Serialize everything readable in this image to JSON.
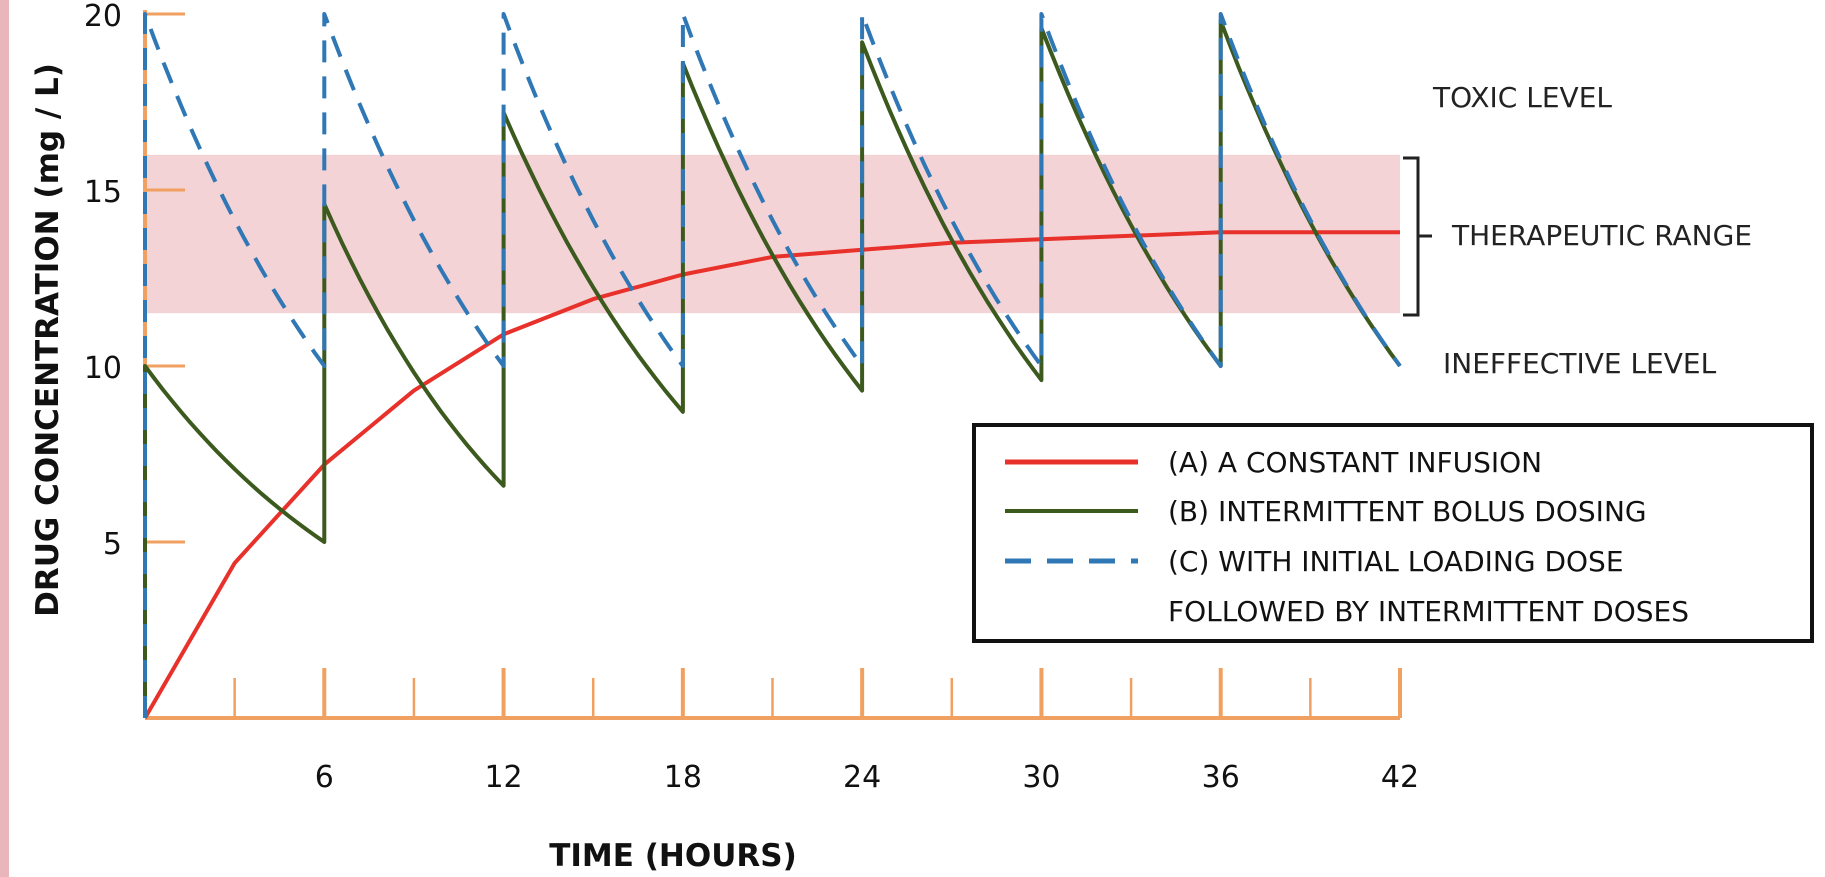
{
  "chart_data": {
    "type": "line",
    "xlabel": "TIME (HOURS)",
    "ylabel": "DRUG CONCENTRATION (mg / L)",
    "xlim": [
      0,
      42
    ],
    "ylim": [
      0,
      20
    ],
    "x_ticks": [
      6,
      12,
      18,
      24,
      30,
      36,
      42
    ],
    "y_ticks": [
      5,
      10,
      15,
      20
    ],
    "therapeutic_range": [
      11.5,
      16
    ],
    "annotations": {
      "toxic": "TOXIC LEVEL",
      "therapeutic": "THERAPEUTIC  RANGE",
      "ineffective": "INEFFECTIVE  LEVEL"
    },
    "legend": {
      "placement": "bottom-right",
      "entries": [
        "(A) A CONSTANT INFUSION",
        "(B) INTERMITTENT  BOLUS DOSING",
        "(C) WITH INITIAL LOADING DOSE",
        "FOLLOWED BY INTERMITTENT  DOSES"
      ]
    },
    "colors": {
      "infusion": "#e8312a",
      "bolus": "#3d5a1e",
      "loading": "#2f77b5",
      "axis": "#f0a060",
      "band": "#f3d3d6"
    },
    "series": [
      {
        "key": "A",
        "style": "solid",
        "x": [
          0,
          3,
          6,
          9,
          12,
          15,
          18,
          21,
          24,
          27,
          30,
          33,
          36,
          39,
          42
        ],
        "y": [
          0,
          4.4,
          7.2,
          9.3,
          10.9,
          11.9,
          12.6,
          13.1,
          13.3,
          13.5,
          13.6,
          13.7,
          13.8,
          13.8,
          13.8
        ]
      },
      {
        "key": "B",
        "style": "solid",
        "x": [
          0,
          0,
          6,
          6,
          12,
          12,
          18,
          18,
          24,
          24,
          30,
          30,
          36,
          36,
          42
        ],
        "y": [
          0,
          10,
          5,
          14.6,
          6.6,
          17.2,
          8.7,
          18.6,
          9.3,
          19.2,
          9.6,
          19.6,
          10,
          19.8,
          10
        ]
      },
      {
        "key": "C",
        "style": "dashed",
        "x": [
          0,
          0,
          6,
          6,
          12,
          12,
          18,
          18,
          24,
          24,
          30,
          30,
          36,
          36,
          42
        ],
        "y": [
          0,
          20,
          10,
          20,
          10,
          20,
          10,
          20,
          10,
          20,
          10,
          20,
          10,
          20,
          10
        ]
      }
    ]
  }
}
